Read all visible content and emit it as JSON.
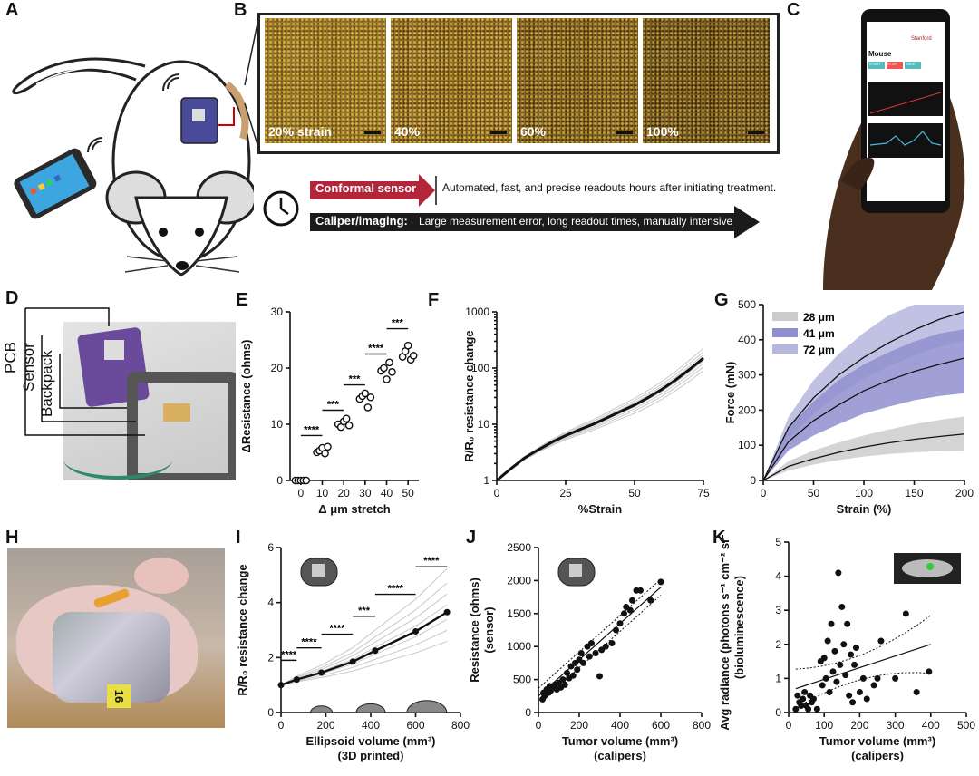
{
  "panel_labels": {
    "A": "A",
    "B": "B",
    "C": "C",
    "D": "D",
    "E": "E",
    "F": "F",
    "G": "G",
    "H": "H",
    "I": "I",
    "J": "J",
    "K": "K"
  },
  "panel_b": {
    "captions": [
      "20% strain",
      "40%",
      "60%",
      "100%"
    ]
  },
  "timeline": {
    "conformal_label": "Conformal sensor",
    "conformal_text": "Automated, fast, and precise readouts hours after initiating treatment.",
    "caliper_label": "Caliper/imaging:",
    "caliper_text": "Large measurement error, long readout times, manually intensive"
  },
  "phone": {
    "brand": "Stanford",
    "title": "Mouse",
    "btn1": "START",
    "btn2": "STOP",
    "btn3": "SAVE"
  },
  "panel_d": {
    "labels": [
      "PCB",
      "Sensor",
      "Backpack"
    ]
  },
  "panel_h": {
    "tag": "16"
  },
  "chart_data": [
    {
      "panel": "E",
      "type": "scatter",
      "xlabel": "Δ μm stretch",
      "ylabel": "ΔResistance (ohms)",
      "x_ticks": [
        "0",
        "10",
        "20",
        "30",
        "40",
        "50"
      ],
      "y_ticks": [
        "0",
        "10",
        "20",
        "30"
      ],
      "xlim": [
        -5,
        55
      ],
      "ylim": [
        0,
        30
      ],
      "points": [
        [
          0,
          0
        ],
        [
          0,
          0
        ],
        [
          0,
          0
        ],
        [
          0,
          0
        ],
        [
          0,
          0
        ],
        [
          10,
          5
        ],
        [
          10,
          5.3
        ],
        [
          10,
          5.8
        ],
        [
          10,
          4.8
        ],
        [
          10,
          6
        ],
        [
          20,
          10
        ],
        [
          20,
          9.5
        ],
        [
          20,
          10.5
        ],
        [
          20,
          11
        ],
        [
          20,
          9.8
        ],
        [
          30,
          14.5
        ],
        [
          30,
          15
        ],
        [
          30,
          15.5
        ],
        [
          30,
          13
        ],
        [
          30,
          14.8
        ],
        [
          40,
          19.5
        ],
        [
          40,
          20
        ],
        [
          40,
          18
        ],
        [
          40,
          21
        ],
        [
          40,
          19.3
        ],
        [
          50,
          22
        ],
        [
          50,
          23
        ],
        [
          50,
          24
        ],
        [
          50,
          21.5
        ],
        [
          50,
          22.2
        ]
      ],
      "significance": [
        "****",
        "***",
        "***",
        "****",
        "***"
      ]
    },
    {
      "panel": "F",
      "type": "line",
      "xlabel": "%Strain",
      "ylabel": "R/R₀ resistance change",
      "x_ticks": [
        "0",
        "25",
        "50",
        "75"
      ],
      "y_ticks": [
        "1",
        "10",
        "100",
        "1000"
      ],
      "xlim": [
        0,
        75
      ],
      "ylim": [
        1,
        1000
      ],
      "log_y": true,
      "series": [
        {
          "x": [
            0,
            5,
            10,
            15,
            20,
            25,
            30,
            35,
            40,
            45,
            50,
            55,
            60,
            65,
            70,
            75
          ],
          "y": [
            1,
            1.6,
            2.5,
            3.5,
            4.8,
            6.3,
            8,
            10,
            13,
            17,
            22,
            30,
            42,
            62,
            95,
            150
          ]
        }
      ]
    },
    {
      "panel": "G",
      "type": "area",
      "xlabel": "Strain (%)",
      "ylabel": "Force (mN)",
      "x_ticks": [
        "0",
        "50",
        "100",
        "150",
        "200"
      ],
      "y_ticks": [
        "0",
        "100",
        "200",
        "300",
        "400",
        "500"
      ],
      "xlim": [
        0,
        200
      ],
      "ylim": [
        0,
        500
      ],
      "series": [
        {
          "name": "28 μm",
          "color": "#cccccc",
          "x": [
            0,
            25,
            50,
            75,
            100,
            125,
            150,
            175,
            200
          ],
          "y": [
            0,
            40,
            62,
            80,
            95,
            107,
            117,
            125,
            132
          ],
          "upper": [
            0,
            55,
            85,
            108,
            128,
            145,
            160,
            172,
            182
          ],
          "lower": [
            0,
            28,
            45,
            58,
            68,
            75,
            80,
            83,
            85
          ]
        },
        {
          "name": "41 μm",
          "color": "#8f8fcf",
          "x": [
            0,
            25,
            50,
            75,
            100,
            125,
            150,
            175,
            200
          ],
          "y": [
            0,
            110,
            170,
            215,
            255,
            285,
            310,
            330,
            348
          ],
          "upper": [
            0,
            150,
            225,
            285,
            330,
            365,
            395,
            418,
            430
          ],
          "lower": [
            0,
            85,
            128,
            160,
            190,
            210,
            228,
            240,
            248
          ]
        },
        {
          "name": "72 μm",
          "color": "#b6b6df",
          "x": [
            0,
            25,
            50,
            75,
            100,
            125,
            150,
            175,
            200
          ],
          "y": [
            0,
            150,
            235,
            300,
            350,
            392,
            428,
            458,
            480
          ],
          "upper": [
            0,
            180,
            285,
            360,
            420,
            470,
            500,
            500,
            500
          ],
          "lower": [
            0,
            120,
            190,
            245,
            290,
            325,
            355,
            380,
            398
          ]
        }
      ]
    },
    {
      "panel": "I",
      "type": "line",
      "xlabel": "Ellipsoid volume (mm³)",
      "xlabel2": "(3D printed)",
      "ylabel": "R/R₀ resistance change",
      "x_ticks": [
        "0",
        "200",
        "400",
        "600",
        "800"
      ],
      "y_ticks": [
        "0",
        "2",
        "4",
        "6"
      ],
      "xlim": [
        0,
        800
      ],
      "ylim": [
        0,
        6
      ],
      "series": [
        {
          "x": [
            0,
            70,
            180,
            320,
            420,
            600,
            740
          ],
          "y": [
            1,
            1.2,
            1.45,
            1.85,
            2.25,
            2.95,
            3.65
          ]
        }
      ],
      "significance": [
        "****",
        "****",
        "****",
        "***",
        "****",
        "****"
      ]
    },
    {
      "panel": "J",
      "type": "scatter",
      "xlabel": "Tumor volume (mm³)",
      "xlabel2": "(calipers)",
      "ylabel": "Resistance (ohms)",
      "ylabel2": "(sensor)",
      "x_ticks": [
        "0",
        "200",
        "400",
        "600",
        "800"
      ],
      "y_ticks": [
        "0",
        "500",
        "1000",
        "1500",
        "2000",
        "2500"
      ],
      "xlim": [
        0,
        800
      ],
      "ylim": [
        0,
        2500
      ],
      "points": [
        [
          20,
          200
        ],
        [
          25,
          300
        ],
        [
          30,
          250
        ],
        [
          40,
          350
        ],
        [
          50,
          300
        ],
        [
          55,
          400
        ],
        [
          60,
          330
        ],
        [
          70,
          380
        ],
        [
          80,
          420
        ],
        [
          90,
          350
        ],
        [
          100,
          450
        ],
        [
          110,
          380
        ],
        [
          120,
          500
        ],
        [
          130,
          420
        ],
        [
          140,
          600
        ],
        [
          150,
          520
        ],
        [
          160,
          700
        ],
        [
          170,
          560
        ],
        [
          180,
          750
        ],
        [
          190,
          650
        ],
        [
          200,
          800
        ],
        [
          210,
          900
        ],
        [
          220,
          750
        ],
        [
          240,
          1000
        ],
        [
          250,
          850
        ],
        [
          260,
          1050
        ],
        [
          280,
          900
        ],
        [
          300,
          550
        ],
        [
          310,
          950
        ],
        [
          330,
          1000
        ],
        [
          360,
          1050
        ],
        [
          380,
          1250
        ],
        [
          400,
          1350
        ],
        [
          420,
          1500
        ],
        [
          430,
          1600
        ],
        [
          450,
          1550
        ],
        [
          460,
          1700
        ],
        [
          480,
          1850
        ],
        [
          500,
          1850
        ],
        [
          550,
          1700
        ],
        [
          600,
          1980
        ]
      ],
      "fit": {
        "x": [
          0,
          600
        ],
        "y": [
          250,
          1900
        ]
      }
    },
    {
      "panel": "K",
      "type": "scatter",
      "xlabel": "Tumor volume (mm³)",
      "xlabel2": "(calipers)",
      "ylabel": "Avg radiance (photons s⁻¹ cm⁻² sr⁻¹)",
      "ylabel2": "(bioluminescence)",
      "x_ticks": [
        "0",
        "100",
        "200",
        "300",
        "400",
        "500"
      ],
      "y_ticks": [
        "0",
        "1",
        "2",
        "3",
        "4",
        "5"
      ],
      "xlim": [
        0,
        500
      ],
      "ylim": [
        0,
        5
      ],
      "points": [
        [
          20,
          0.1
        ],
        [
          25,
          0.5
        ],
        [
          30,
          0.3
        ],
        [
          35,
          0.2
        ],
        [
          40,
          0.4
        ],
        [
          45,
          0.6
        ],
        [
          50,
          0.2
        ],
        [
          55,
          0.1
        ],
        [
          60,
          0.5
        ],
        [
          65,
          0.3
        ],
        [
          70,
          0.4
        ],
        [
          80,
          0.1
        ],
        [
          90,
          1.5
        ],
        [
          95,
          0.8
        ],
        [
          100,
          1.6
        ],
        [
          105,
          1.0
        ],
        [
          110,
          2.1
        ],
        [
          115,
          0.6
        ],
        [
          120,
          2.6
        ],
        [
          125,
          1.2
        ],
        [
          130,
          1.8
        ],
        [
          135,
          0.9
        ],
        [
          140,
          4.1
        ],
        [
          145,
          1.4
        ],
        [
          150,
          3.1
        ],
        [
          155,
          2.0
        ],
        [
          160,
          1.1
        ],
        [
          165,
          2.6
        ],
        [
          170,
          0.5
        ],
        [
          175,
          1.7
        ],
        [
          180,
          0.3
        ],
        [
          185,
          1.4
        ],
        [
          190,
          1.9
        ],
        [
          200,
          0.6
        ],
        [
          210,
          1.0
        ],
        [
          220,
          0.4
        ],
        [
          240,
          0.8
        ],
        [
          250,
          1.0
        ],
        [
          260,
          2.1
        ],
        [
          300,
          1.0
        ],
        [
          330,
          2.9
        ],
        [
          360,
          0.6
        ],
        [
          395,
          1.2
        ]
      ],
      "fit": {
        "x": [
          20,
          400
        ],
        "y": [
          0.7,
          2.0
        ]
      }
    }
  ]
}
